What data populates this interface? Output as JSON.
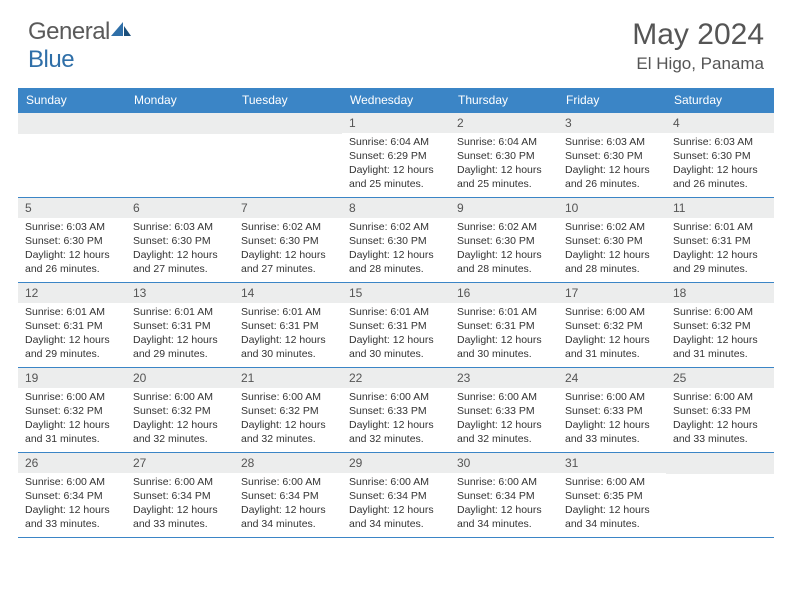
{
  "brand": {
    "part1": "General",
    "part2": "Blue"
  },
  "title": "May 2024",
  "location": "El Higo, Panama",
  "weekday_header_bg": "#3b85c6",
  "weekdays": [
    "Sunday",
    "Monday",
    "Tuesday",
    "Wednesday",
    "Thursday",
    "Friday",
    "Saturday"
  ],
  "weeks": [
    [
      null,
      null,
      null,
      {
        "n": "1",
        "sunrise": "6:04 AM",
        "sunset": "6:29 PM",
        "daylight": "12 hours and 25 minutes."
      },
      {
        "n": "2",
        "sunrise": "6:04 AM",
        "sunset": "6:30 PM",
        "daylight": "12 hours and 25 minutes."
      },
      {
        "n": "3",
        "sunrise": "6:03 AM",
        "sunset": "6:30 PM",
        "daylight": "12 hours and 26 minutes."
      },
      {
        "n": "4",
        "sunrise": "6:03 AM",
        "sunset": "6:30 PM",
        "daylight": "12 hours and 26 minutes."
      }
    ],
    [
      {
        "n": "5",
        "sunrise": "6:03 AM",
        "sunset": "6:30 PM",
        "daylight": "12 hours and 26 minutes."
      },
      {
        "n": "6",
        "sunrise": "6:03 AM",
        "sunset": "6:30 PM",
        "daylight": "12 hours and 27 minutes."
      },
      {
        "n": "7",
        "sunrise": "6:02 AM",
        "sunset": "6:30 PM",
        "daylight": "12 hours and 27 minutes."
      },
      {
        "n": "8",
        "sunrise": "6:02 AM",
        "sunset": "6:30 PM",
        "daylight": "12 hours and 28 minutes."
      },
      {
        "n": "9",
        "sunrise": "6:02 AM",
        "sunset": "6:30 PM",
        "daylight": "12 hours and 28 minutes."
      },
      {
        "n": "10",
        "sunrise": "6:02 AM",
        "sunset": "6:30 PM",
        "daylight": "12 hours and 28 minutes."
      },
      {
        "n": "11",
        "sunrise": "6:01 AM",
        "sunset": "6:31 PM",
        "daylight": "12 hours and 29 minutes."
      }
    ],
    [
      {
        "n": "12",
        "sunrise": "6:01 AM",
        "sunset": "6:31 PM",
        "daylight": "12 hours and 29 minutes."
      },
      {
        "n": "13",
        "sunrise": "6:01 AM",
        "sunset": "6:31 PM",
        "daylight": "12 hours and 29 minutes."
      },
      {
        "n": "14",
        "sunrise": "6:01 AM",
        "sunset": "6:31 PM",
        "daylight": "12 hours and 30 minutes."
      },
      {
        "n": "15",
        "sunrise": "6:01 AM",
        "sunset": "6:31 PM",
        "daylight": "12 hours and 30 minutes."
      },
      {
        "n": "16",
        "sunrise": "6:01 AM",
        "sunset": "6:31 PM",
        "daylight": "12 hours and 30 minutes."
      },
      {
        "n": "17",
        "sunrise": "6:00 AM",
        "sunset": "6:32 PM",
        "daylight": "12 hours and 31 minutes."
      },
      {
        "n": "18",
        "sunrise": "6:00 AM",
        "sunset": "6:32 PM",
        "daylight": "12 hours and 31 minutes."
      }
    ],
    [
      {
        "n": "19",
        "sunrise": "6:00 AM",
        "sunset": "6:32 PM",
        "daylight": "12 hours and 31 minutes."
      },
      {
        "n": "20",
        "sunrise": "6:00 AM",
        "sunset": "6:32 PM",
        "daylight": "12 hours and 32 minutes."
      },
      {
        "n": "21",
        "sunrise": "6:00 AM",
        "sunset": "6:32 PM",
        "daylight": "12 hours and 32 minutes."
      },
      {
        "n": "22",
        "sunrise": "6:00 AM",
        "sunset": "6:33 PM",
        "daylight": "12 hours and 32 minutes."
      },
      {
        "n": "23",
        "sunrise": "6:00 AM",
        "sunset": "6:33 PM",
        "daylight": "12 hours and 32 minutes."
      },
      {
        "n": "24",
        "sunrise": "6:00 AM",
        "sunset": "6:33 PM",
        "daylight": "12 hours and 33 minutes."
      },
      {
        "n": "25",
        "sunrise": "6:00 AM",
        "sunset": "6:33 PM",
        "daylight": "12 hours and 33 minutes."
      }
    ],
    [
      {
        "n": "26",
        "sunrise": "6:00 AM",
        "sunset": "6:34 PM",
        "daylight": "12 hours and 33 minutes."
      },
      {
        "n": "27",
        "sunrise": "6:00 AM",
        "sunset": "6:34 PM",
        "daylight": "12 hours and 33 minutes."
      },
      {
        "n": "28",
        "sunrise": "6:00 AM",
        "sunset": "6:34 PM",
        "daylight": "12 hours and 34 minutes."
      },
      {
        "n": "29",
        "sunrise": "6:00 AM",
        "sunset": "6:34 PM",
        "daylight": "12 hours and 34 minutes."
      },
      {
        "n": "30",
        "sunrise": "6:00 AM",
        "sunset": "6:34 PM",
        "daylight": "12 hours and 34 minutes."
      },
      {
        "n": "31",
        "sunrise": "6:00 AM",
        "sunset": "6:35 PM",
        "daylight": "12 hours and 34 minutes."
      },
      null
    ]
  ],
  "labels": {
    "sunrise": "Sunrise: ",
    "sunset": "Sunset: ",
    "daylight": "Daylight: "
  }
}
